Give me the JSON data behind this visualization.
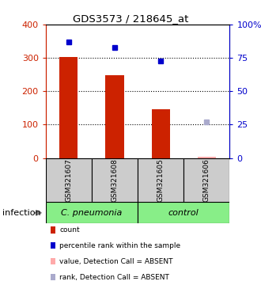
{
  "title": "GDS3573 / 218645_at",
  "samples": [
    "GSM321607",
    "GSM321608",
    "GSM321605",
    "GSM321606"
  ],
  "bar_values": [
    302,
    248,
    147,
    null
  ],
  "bar_color": "#cc2200",
  "absent_bar_value": 5,
  "absent_bar_color": "#ffaaaa",
  "percentile_values": [
    347,
    330,
    290,
    null
  ],
  "percentile_color": "#0000cc",
  "absent_percentile_value": 27,
  "absent_percentile_color": "#aaaacc",
  "ylim_left": [
    0,
    400
  ],
  "ylim_right": [
    0,
    100
  ],
  "yticks_left": [
    0,
    100,
    200,
    300,
    400
  ],
  "yticks_right": [
    0,
    25,
    50,
    75,
    100
  ],
  "ytick_labels_right": [
    "0",
    "25",
    "50",
    "75",
    "100%"
  ],
  "dotted_lines": [
    100,
    200,
    300
  ],
  "group_labels": [
    "C. pneumonia",
    "control"
  ],
  "group_color": "#88ee88",
  "group_label": "infection",
  "sample_area_color": "#cccccc",
  "legend_items": [
    {
      "label": "count",
      "color": "#cc2200"
    },
    {
      "label": "percentile rank within the sample",
      "color": "#0000cc"
    },
    {
      "label": "value, Detection Call = ABSENT",
      "color": "#ffaaaa"
    },
    {
      "label": "rank, Detection Call = ABSENT",
      "color": "#aaaacc"
    }
  ],
  "background_color": "#ffffff",
  "left_axis_color": "#cc2200",
  "right_axis_color": "#0000cc",
  "bar_width": 0.4
}
